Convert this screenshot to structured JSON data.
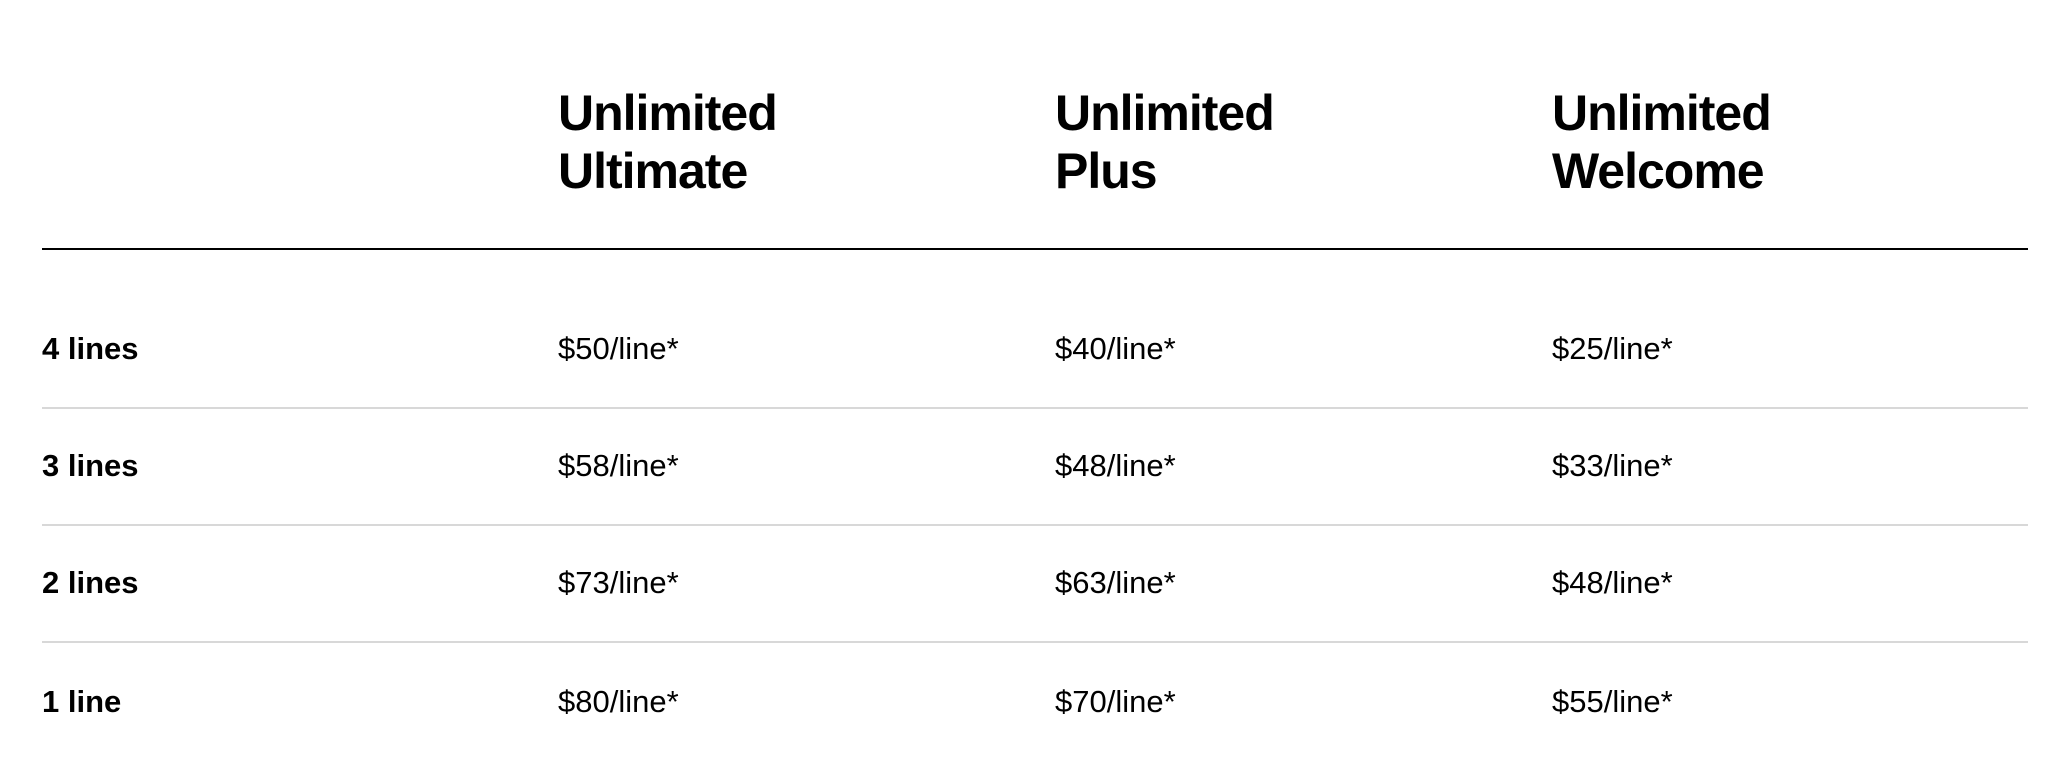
{
  "plans": [
    {
      "line1": "Unlimited",
      "line2": "Ultimate"
    },
    {
      "line1": "Unlimited",
      "line2": "Plus"
    },
    {
      "line1": "Unlimited",
      "line2": "Welcome"
    }
  ],
  "rows": [
    {
      "label": "4 lines",
      "prices": [
        "$50/line*",
        "$40/line*",
        "$25/line*"
      ]
    },
    {
      "label": "3 lines",
      "prices": [
        "$58/line*",
        "$48/line*",
        "$33/line*"
      ]
    },
    {
      "label": "2 lines",
      "prices": [
        "$73/line*",
        "$63/line*",
        "$48/line*"
      ]
    },
    {
      "label": "1 line",
      "prices": [
        "$80/line*",
        "$70/line*",
        "$55/line*"
      ]
    }
  ]
}
